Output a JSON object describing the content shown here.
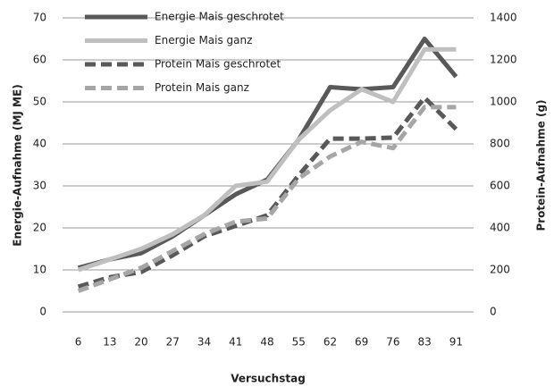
{
  "chart_data": {
    "type": "line",
    "xlabel": "Versuchstag",
    "ylabel": "Energie-Aufnahme (MJ ME)",
    "y2label": "Protein-Aufnahme (g)",
    "categories": [
      6,
      13,
      20,
      27,
      34,
      41,
      48,
      55,
      62,
      69,
      76,
      83,
      91
    ],
    "ylim": [
      0,
      70
    ],
    "yticks": [
      0,
      10,
      20,
      30,
      40,
      50,
      60,
      70
    ],
    "y2lim": [
      0,
      1400
    ],
    "y2ticks": [
      0,
      200,
      400,
      600,
      800,
      1000,
      1200,
      1400
    ],
    "grid": true,
    "legend": "upper left",
    "series": [
      {
        "name": "Energie Mais geschrotet",
        "color": "#595959",
        "dashed": false,
        "values": [
          10.5,
          12.5,
          14,
          18,
          23,
          28,
          31.5,
          41,
          53.5,
          53,
          53.5,
          65,
          56
        ]
      },
      {
        "name": "Energie Mais ganz",
        "color": "#bfbfbf",
        "dashed": false,
        "values": [
          10,
          12.5,
          15,
          18.5,
          23,
          30,
          31,
          41,
          48,
          53,
          50,
          62.5,
          62.5
        ]
      },
      {
        "name": "Protein Mais geschrotet",
        "color": "#595959",
        "dashed": true,
        "axis": "y2",
        "values": [
          120,
          165,
          190,
          270,
          360,
          410,
          460,
          650,
          825,
          825,
          830,
          1020,
          870
        ]
      },
      {
        "name": "Protein Mais ganz",
        "color": "#a6a6a6",
        "dashed": true,
        "axis": "y2",
        "values": [
          100,
          155,
          210,
          290,
          370,
          430,
          445,
          635,
          740,
          810,
          780,
          975,
          975
        ]
      }
    ]
  }
}
